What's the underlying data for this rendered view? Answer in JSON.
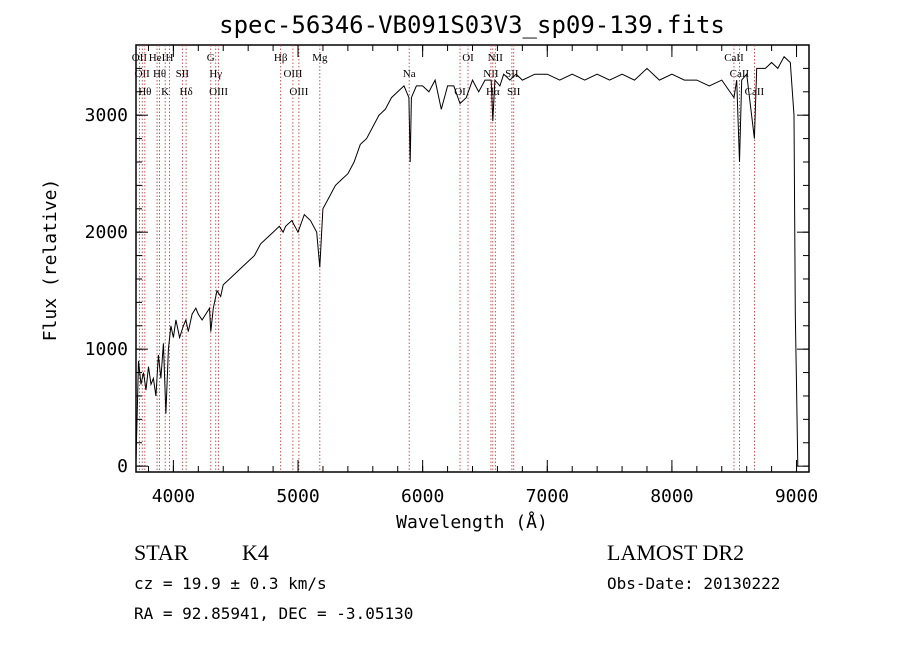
{
  "chart_data": {
    "type": "line",
    "title": "spec-56346-VB091S03V3_sp09-139.fits",
    "xlabel": "Wavelength (Å)",
    "ylabel": "Flux (relative)",
    "xlim": [
      3700,
      9100
    ],
    "ylim": [
      -50,
      3600
    ],
    "x_ticks": [
      4000,
      5000,
      6000,
      7000,
      8000,
      9000
    ],
    "y_ticks": [
      0,
      1000,
      2000,
      3000
    ],
    "grid": false,
    "series": [
      {
        "points": [
          [
            3700,
            40
          ],
          [
            3720,
            900
          ],
          [
            3740,
            700
          ],
          [
            3760,
            800
          ],
          [
            3780,
            650
          ],
          [
            3800,
            850
          ],
          [
            3820,
            700
          ],
          [
            3840,
            750
          ],
          [
            3860,
            600
          ],
          [
            3880,
            950
          ],
          [
            3900,
            750
          ],
          [
            3920,
            1050
          ],
          [
            3940,
            450
          ],
          [
            3960,
            1000
          ],
          [
            3980,
            1200
          ],
          [
            4000,
            1100
          ],
          [
            4020,
            1250
          ],
          [
            4050,
            1100
          ],
          [
            4080,
            1200
          ],
          [
            4100,
            1250
          ],
          [
            4120,
            1150
          ],
          [
            4150,
            1300
          ],
          [
            4180,
            1350
          ],
          [
            4200,
            1300
          ],
          [
            4230,
            1250
          ],
          [
            4260,
            1300
          ],
          [
            4290,
            1350
          ],
          [
            4300,
            1150
          ],
          [
            4320,
            1350
          ],
          [
            4350,
            1500
          ],
          [
            4380,
            1450
          ],
          [
            4400,
            1550
          ],
          [
            4450,
            1600
          ],
          [
            4500,
            1650
          ],
          [
            4550,
            1700
          ],
          [
            4600,
            1750
          ],
          [
            4650,
            1800
          ],
          [
            4700,
            1900
          ],
          [
            4750,
            1950
          ],
          [
            4800,
            2000
          ],
          [
            4850,
            2050
          ],
          [
            4880,
            2000
          ],
          [
            4900,
            2050
          ],
          [
            4950,
            2100
          ],
          [
            5000,
            2000
          ],
          [
            5050,
            2150
          ],
          [
            5100,
            2100
          ],
          [
            5150,
            2000
          ],
          [
            5175,
            1700
          ],
          [
            5200,
            2200
          ],
          [
            5250,
            2300
          ],
          [
            5300,
            2400
          ],
          [
            5350,
            2450
          ],
          [
            5400,
            2500
          ],
          [
            5450,
            2600
          ],
          [
            5500,
            2750
          ],
          [
            5550,
            2800
          ],
          [
            5600,
            2900
          ],
          [
            5650,
            3000
          ],
          [
            5700,
            3050
          ],
          [
            5750,
            3150
          ],
          [
            5800,
            3200
          ],
          [
            5850,
            3250
          ],
          [
            5890,
            3150
          ],
          [
            5900,
            2600
          ],
          [
            5910,
            3150
          ],
          [
            5950,
            3250
          ],
          [
            6000,
            3250
          ],
          [
            6050,
            3200
          ],
          [
            6100,
            3300
          ],
          [
            6150,
            3050
          ],
          [
            6200,
            3250
          ],
          [
            6250,
            3250
          ],
          [
            6300,
            3100
          ],
          [
            6350,
            3150
          ],
          [
            6400,
            3300
          ],
          [
            6450,
            3200
          ],
          [
            6500,
            3300
          ],
          [
            6550,
            3300
          ],
          [
            6563,
            2950
          ],
          [
            6580,
            3300
          ],
          [
            6620,
            3250
          ],
          [
            6650,
            3350
          ],
          [
            6700,
            3300
          ],
          [
            6750,
            3350
          ],
          [
            6800,
            3300
          ],
          [
            6900,
            3350
          ],
          [
            7000,
            3350
          ],
          [
            7100,
            3300
          ],
          [
            7200,
            3350
          ],
          [
            7300,
            3300
          ],
          [
            7400,
            3350
          ],
          [
            7500,
            3300
          ],
          [
            7600,
            3350
          ],
          [
            7700,
            3300
          ],
          [
            7800,
            3400
          ],
          [
            7900,
            3300
          ],
          [
            8000,
            3350
          ],
          [
            8100,
            3300
          ],
          [
            8200,
            3300
          ],
          [
            8300,
            3250
          ],
          [
            8400,
            3300
          ],
          [
            8498,
            3150
          ],
          [
            8520,
            3300
          ],
          [
            8542,
            2600
          ],
          [
            8560,
            3300
          ],
          [
            8600,
            3350
          ],
          [
            8662,
            2800
          ],
          [
            8680,
            3400
          ],
          [
            8750,
            3400
          ],
          [
            8800,
            3450
          ],
          [
            8850,
            3400
          ],
          [
            8900,
            3500
          ],
          [
            8950,
            3450
          ],
          [
            8980,
            3000
          ],
          [
            8990,
            1300
          ],
          [
            9000,
            700
          ],
          [
            9010,
            0
          ]
        ]
      }
    ],
    "line_marks": [
      {
        "x": 3727,
        "labels": [
          "OII"
        ]
      },
      {
        "x": 3750,
        "labels": [
          "OII"
        ]
      },
      {
        "x": 3771,
        "labels": [
          "Hθ"
        ]
      },
      {
        "x": 3869,
        "labels": [
          "HeI"
        ]
      },
      {
        "x": 3889,
        "labels": [
          "Hθ"
        ]
      },
      {
        "x": 3934,
        "labels": [
          "K"
        ]
      },
      {
        "x": 3969,
        "labels": [
          "H"
        ]
      },
      {
        "x": 4072,
        "labels": [
          "SII"
        ]
      },
      {
        "x": 4102,
        "labels": [
          "Hδ"
        ]
      },
      {
        "x": 4300,
        "labels": [
          "G"
        ]
      },
      {
        "x": 4340,
        "labels": [
          "Hγ"
        ]
      },
      {
        "x": 4363,
        "labels": [
          "OIII"
        ]
      },
      {
        "x": 4861,
        "labels": [
          "Hβ"
        ]
      },
      {
        "x": 4959,
        "labels": [
          "OIII"
        ]
      },
      {
        "x": 5007,
        "labels": [
          "OIII"
        ]
      },
      {
        "x": 5175,
        "labels": [
          "Mg"
        ]
      },
      {
        "x": 5892,
        "labels": [
          "Na"
        ]
      },
      {
        "x": 6300,
        "labels": [
          "OI"
        ]
      },
      {
        "x": 6364,
        "labels": [
          "OI"
        ]
      },
      {
        "x": 6548,
        "labels": [
          "NII"
        ]
      },
      {
        "x": 6563,
        "labels": [
          "Hα"
        ]
      },
      {
        "x": 6583,
        "labels": [
          "NII"
        ]
      },
      {
        "x": 6716,
        "labels": [
          "SII"
        ]
      },
      {
        "x": 6731,
        "labels": [
          "SII"
        ]
      },
      {
        "x": 8498,
        "labels": [
          "CaII"
        ]
      },
      {
        "x": 8542,
        "labels": [
          "CaII"
        ]
      },
      {
        "x": 8662,
        "labels": [
          "CaII"
        ]
      }
    ]
  },
  "info": {
    "class_label": "STAR",
    "subclass_label": "K4",
    "survey": "LAMOST DR2",
    "cz": "cz = 19.9 ± 0.3 km/s",
    "obs_date": "Obs-Date: 20130222",
    "coords": "RA =  92.85941, DEC =  -3.05130"
  }
}
